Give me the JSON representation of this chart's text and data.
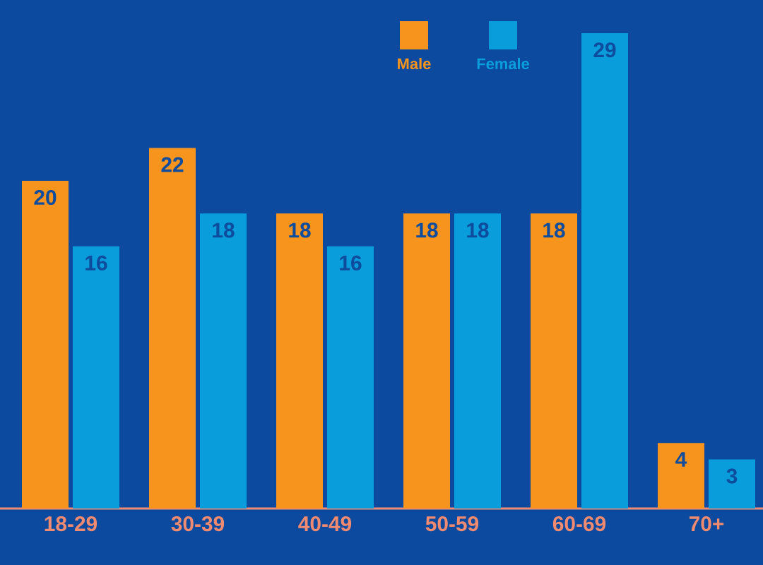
{
  "chart_data": {
    "type": "bar",
    "categories": [
      "18-29",
      "30-39",
      "40-49",
      "50-59",
      "60-69",
      "70+"
    ],
    "series": [
      {
        "name": "Male",
        "color": "#f7941d",
        "values": [
          20,
          22,
          18,
          18,
          18,
          4
        ]
      },
      {
        "name": "Female",
        "color": "#0a9ddb",
        "values": [
          16,
          18,
          16,
          18,
          29,
          3
        ]
      }
    ],
    "data_labels": true,
    "legend": "top"
  }
}
